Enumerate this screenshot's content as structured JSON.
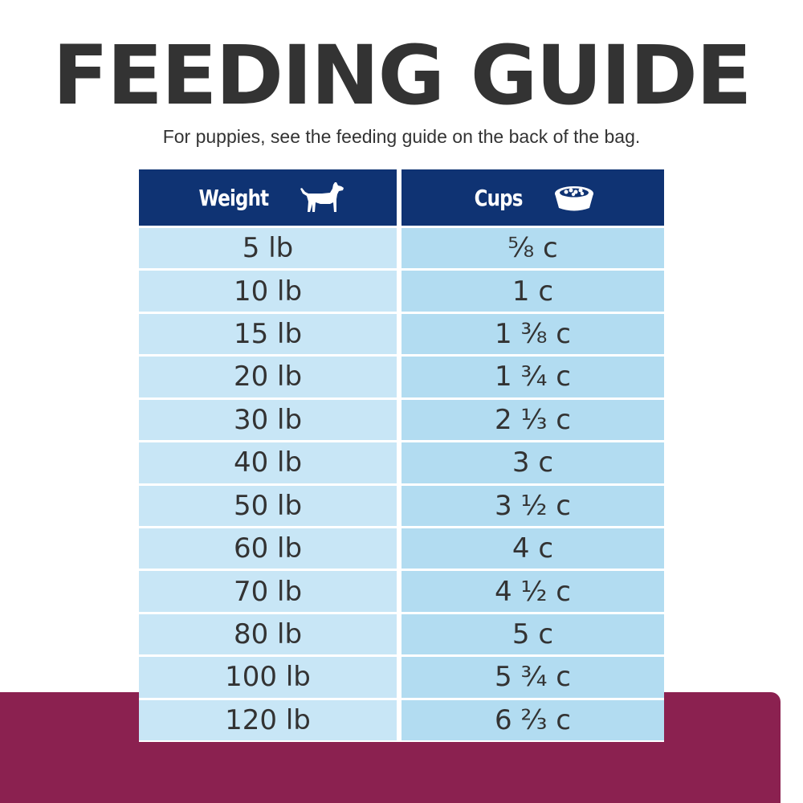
{
  "title": "FEEDING GUIDE",
  "subtitle": "For puppies, see the feeding guide on the back of the bag.",
  "colors": {
    "header_bg": "#0f3373",
    "weight_cell_bg": "#c8e6f6",
    "cups_cell_bg": "#b2dcf1",
    "text": "#333333",
    "band": "#8b2150"
  },
  "table": {
    "headers": [
      {
        "label": "Weight",
        "icon": "dog-icon"
      },
      {
        "label": "Cups",
        "icon": "food-bowl-icon"
      }
    ],
    "rows": [
      {
        "weight": "5 lb",
        "cups": "⅝ c"
      },
      {
        "weight": "10 lb",
        "cups": "1 c"
      },
      {
        "weight": "15 lb",
        "cups": "1 ⅜ c"
      },
      {
        "weight": "20 lb",
        "cups": "1 ¾ c"
      },
      {
        "weight": "30 lb",
        "cups": "2 ⅓ c"
      },
      {
        "weight": "40 lb",
        "cups": "3 c"
      },
      {
        "weight": "50 lb",
        "cups": "3 ½ c"
      },
      {
        "weight": "60 lb",
        "cups": "4 c"
      },
      {
        "weight": "70 lb",
        "cups": "4 ½ c"
      },
      {
        "weight": "80 lb",
        "cups": "5 c"
      },
      {
        "weight": "100 lb",
        "cups": "5 ¾ c"
      },
      {
        "weight": "120 lb",
        "cups": "6 ⅔ c"
      }
    ]
  }
}
